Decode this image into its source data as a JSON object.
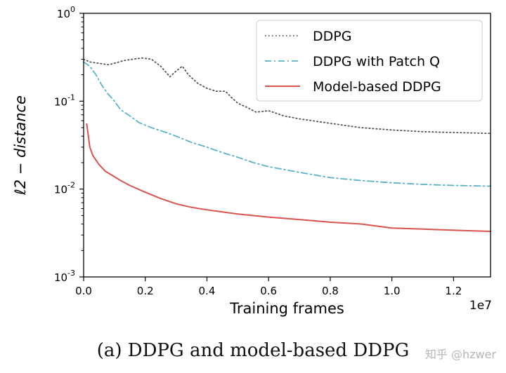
{
  "chart_data": {
    "type": "line",
    "xlabel": "Training frames",
    "ylabel": "ℓ2 − distance",
    "x_scale_label": "1e7",
    "xlim": [
      0,
      1.32
    ],
    "ylim": [
      0.001,
      1
    ],
    "yscale": "log",
    "x_ticks": [
      0.0,
      0.2,
      0.4,
      0.6,
      0.8,
      1.0,
      1.2
    ],
    "x_tick_labels": [
      "0.0",
      "0.2",
      "0.4",
      "0.6",
      "0.8",
      "1.0",
      "1.2"
    ],
    "y_ticks": [
      0.001,
      0.01,
      0.1,
      1
    ],
    "y_tick_labels": [
      {
        "base": "10",
        "exp": "-3"
      },
      {
        "base": "10",
        "exp": "-2"
      },
      {
        "base": "10",
        "exp": "-1"
      },
      {
        "base": "10",
        "exp": "0"
      }
    ],
    "grid": false,
    "legend_position": "top-right",
    "series": [
      {
        "name": "DDPG",
        "color": "#555555",
        "style": "dotted",
        "x": [
          0.0,
          0.02,
          0.05,
          0.08,
          0.1,
          0.13,
          0.16,
          0.19,
          0.22,
          0.25,
          0.28,
          0.3,
          0.32,
          0.34,
          0.37,
          0.4,
          0.43,
          0.46,
          0.48,
          0.5,
          0.53,
          0.56,
          0.6,
          0.65,
          0.7,
          0.8,
          0.9,
          1.0,
          1.1,
          1.2,
          1.32
        ],
        "y": [
          0.3,
          0.28,
          0.27,
          0.26,
          0.27,
          0.29,
          0.3,
          0.31,
          0.3,
          0.25,
          0.19,
          0.22,
          0.25,
          0.2,
          0.16,
          0.14,
          0.13,
          0.13,
          0.11,
          0.095,
          0.085,
          0.075,
          0.078,
          0.068,
          0.063,
          0.056,
          0.05,
          0.047,
          0.045,
          0.044,
          0.043
        ]
      },
      {
        "name": "DDPG with Patch Q",
        "color": "#5ab3c6",
        "style": "dashdot",
        "x": [
          0.0,
          0.02,
          0.04,
          0.06,
          0.08,
          0.1,
          0.12,
          0.15,
          0.18,
          0.22,
          0.26,
          0.3,
          0.35,
          0.4,
          0.45,
          0.5,
          0.55,
          0.6,
          0.7,
          0.8,
          0.9,
          1.0,
          1.1,
          1.2,
          1.32
        ],
        "y": [
          0.28,
          0.25,
          0.2,
          0.15,
          0.12,
          0.1,
          0.08,
          0.068,
          0.057,
          0.05,
          0.045,
          0.04,
          0.034,
          0.03,
          0.026,
          0.023,
          0.02,
          0.018,
          0.0155,
          0.0135,
          0.0125,
          0.0118,
          0.0113,
          0.011,
          0.0108
        ]
      },
      {
        "name": "Model-based DDPG",
        "color": "#d9534f",
        "style": "solid",
        "x": [
          0.01,
          0.02,
          0.03,
          0.05,
          0.07,
          0.09,
          0.12,
          0.15,
          0.2,
          0.25,
          0.3,
          0.35,
          0.4,
          0.5,
          0.6,
          0.7,
          0.8,
          0.9,
          1.0,
          1.1,
          1.2,
          1.32
        ],
        "y": [
          0.055,
          0.03,
          0.024,
          0.019,
          0.016,
          0.0145,
          0.0125,
          0.011,
          0.0092,
          0.0078,
          0.0068,
          0.0062,
          0.0058,
          0.0052,
          0.0048,
          0.0045,
          0.0042,
          0.004,
          0.0036,
          0.0035,
          0.0034,
          0.0033
        ]
      }
    ]
  },
  "caption": "(a)  DDPG and model-based DDPG",
  "watermark": "知乎 @hzwer"
}
